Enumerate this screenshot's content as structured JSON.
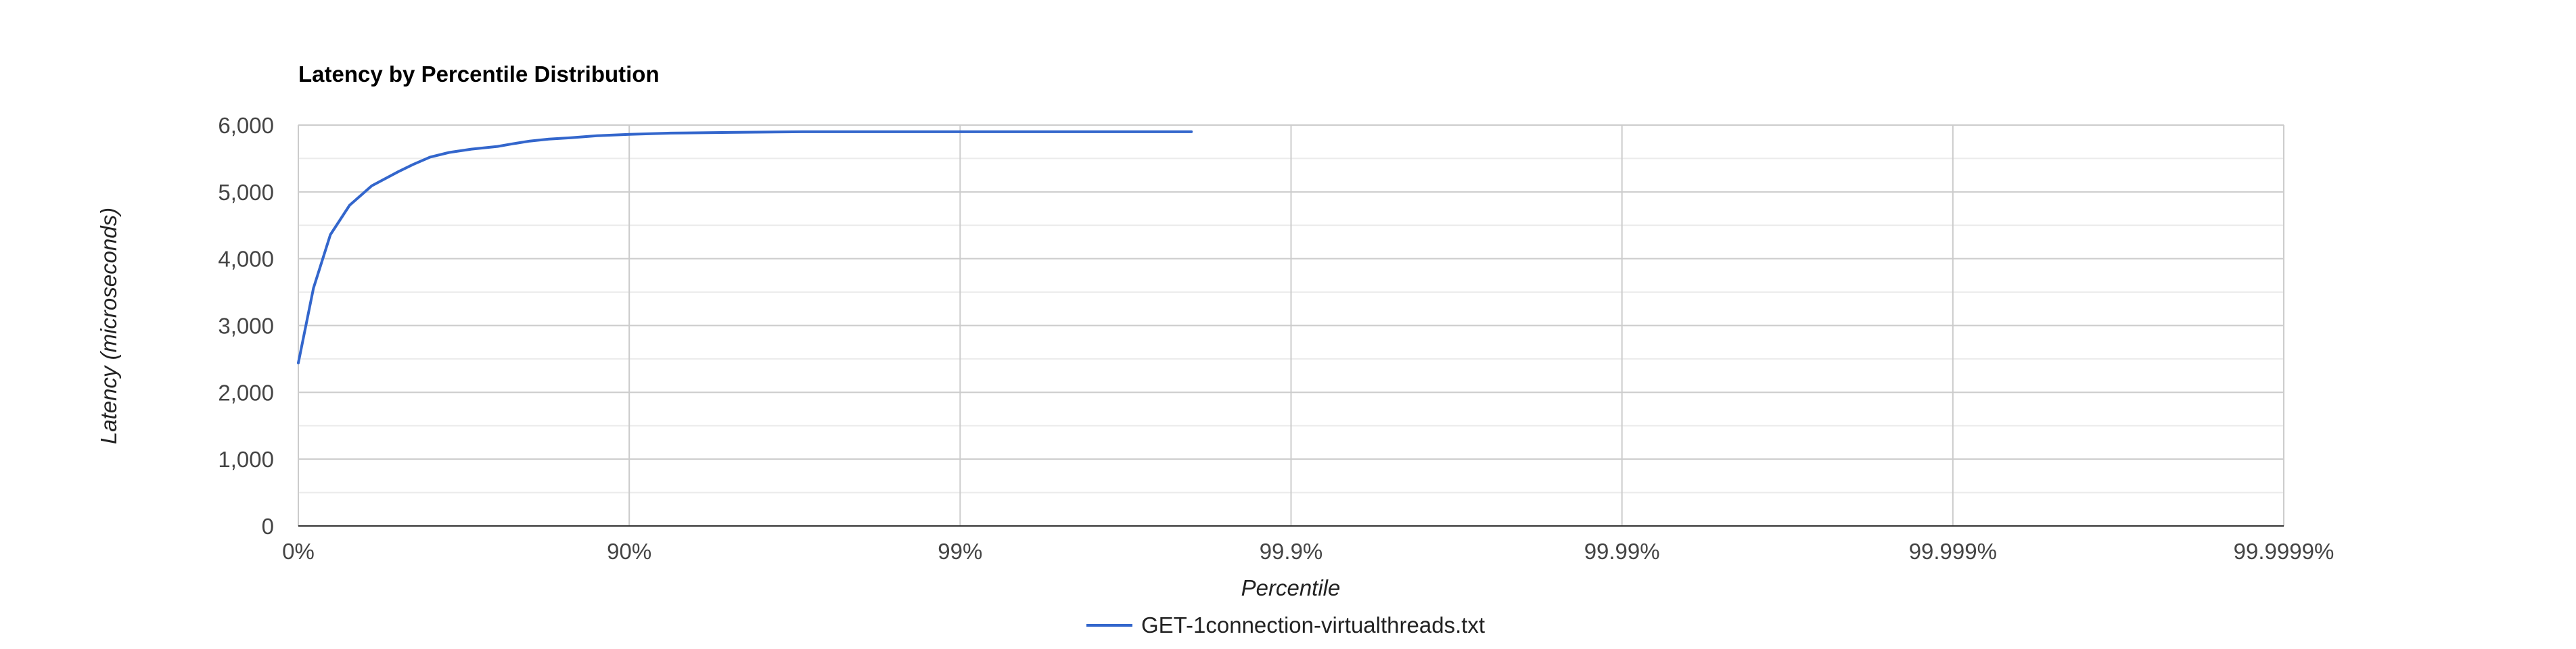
{
  "chart_data": {
    "type": "line",
    "title": "Latency by Percentile Distribution",
    "xlabel": "Percentile",
    "ylabel": "Latency (microseconds)",
    "x_scale": "log-inverse (1/(1-p))",
    "x_ticks": [
      "0%",
      "90%",
      "99%",
      "99.9%",
      "99.99%",
      "99.999%",
      "99.9999%"
    ],
    "x_range": [
      "0%",
      "99.9999%"
    ],
    "y_ticks": [
      "0",
      "1,000",
      "2,000",
      "3,000",
      "4,000",
      "5,000",
      "6,000"
    ],
    "ylim": [
      0,
      6000
    ],
    "grid": true,
    "legend_position": "bottom",
    "series": [
      {
        "name": "GET-1connection-virtualthreads.txt",
        "color": "#3366cc",
        "points": [
          {
            "p": 0,
            "y": 2440
          },
          {
            "p": 10,
            "y": 3560
          },
          {
            "p": 20,
            "y": 4360
          },
          {
            "p": 30,
            "y": 4800
          },
          {
            "p": 40,
            "y": 5090
          },
          {
            "p": 50,
            "y": 5300
          },
          {
            "p": 55,
            "y": 5410
          },
          {
            "p": 60,
            "y": 5520
          },
          {
            "p": 65,
            "y": 5590
          },
          {
            "p": 70,
            "y": 5640
          },
          {
            "p": 75,
            "y": 5680
          },
          {
            "p": 77.5,
            "y": 5720
          },
          {
            "p": 80,
            "y": 5760
          },
          {
            "p": 82.5,
            "y": 5790
          },
          {
            "p": 85,
            "y": 5810
          },
          {
            "p": 87.5,
            "y": 5840
          },
          {
            "p": 90,
            "y": 5860
          },
          {
            "p": 92.5,
            "y": 5880
          },
          {
            "p": 95,
            "y": 5890
          },
          {
            "p": 97,
            "y": 5900
          },
          {
            "p": 98,
            "y": 5900
          },
          {
            "p": 99,
            "y": 5900
          },
          {
            "p": 99.5,
            "y": 5900
          },
          {
            "p": 99.7,
            "y": 5900
          },
          {
            "p": 99.8,
            "y": 5900
          }
        ]
      }
    ]
  }
}
